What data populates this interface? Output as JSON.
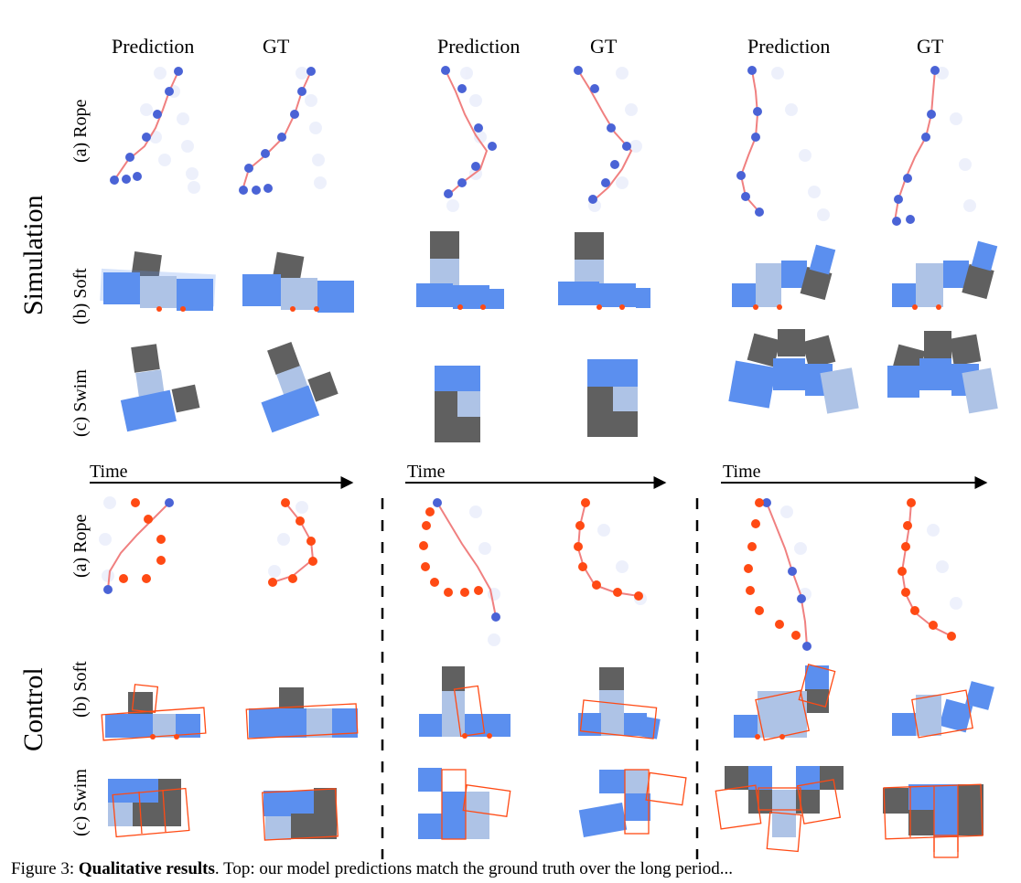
{
  "column_headers": [
    "Prediction",
    "GT",
    "Prediction",
    "GT",
    "Prediction",
    "GT"
  ],
  "sections": {
    "simulation": "Simulation",
    "control": "Control"
  },
  "row_labels": {
    "rope": "(a) Rope",
    "soft": "(b) Soft",
    "swim": "(c) Swim"
  },
  "time_label": "Time",
  "caption": {
    "prefix": "Figure 3: ",
    "bold": "Qualitative results",
    "rest": ". Top: our model predictions match the ground truth over the long period..."
  },
  "colors": {
    "blue_particle": "#4a63d6",
    "red_target": "#ff4a14",
    "body_blue": "#5b8fef",
    "body_light": "#aec3e6",
    "body_dark": "#606060",
    "outline_red": "#ff4a14",
    "link_pink": "#f4a5a5"
  }
}
